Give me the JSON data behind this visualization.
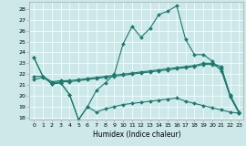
{
  "xlabel": "Humidex (Indice chaleur)",
  "bg_color": "#cce8e8",
  "grid_color": "#ffffff",
  "line_color": "#1a7a6e",
  "xlim": [
    -0.5,
    23.5
  ],
  "ylim": [
    17.8,
    28.7
  ],
  "xticks": [
    0,
    1,
    2,
    3,
    4,
    5,
    6,
    7,
    8,
    9,
    10,
    11,
    12,
    13,
    14,
    15,
    16,
    17,
    18,
    19,
    20,
    21,
    22,
    23
  ],
  "yticks": [
    18,
    19,
    20,
    21,
    22,
    23,
    24,
    25,
    26,
    27,
    28
  ],
  "lines": [
    {
      "x": [
        0,
        1,
        2,
        3,
        4,
        5,
        6,
        7,
        8,
        9,
        10,
        11,
        12,
        13,
        14,
        15,
        16,
        17,
        18,
        19,
        20,
        21,
        22,
        23
      ],
      "y": [
        23.5,
        21.8,
        21.1,
        21.2,
        20.1,
        17.8,
        19.0,
        20.5,
        21.2,
        22.0,
        24.8,
        26.4,
        25.4,
        26.2,
        27.5,
        27.8,
        28.3,
        25.2,
        23.8,
        23.8,
        23.2,
        22.3,
        20.0,
        18.5
      ]
    },
    {
      "x": [
        0,
        1,
        2,
        3,
        4,
        5,
        6,
        7,
        8,
        9,
        10,
        11,
        12,
        13,
        14,
        15,
        16,
        17,
        18,
        19,
        20,
        21,
        22,
        23
      ],
      "y": [
        21.8,
        21.8,
        21.3,
        21.4,
        21.4,
        21.5,
        21.6,
        21.7,
        21.8,
        21.9,
        22.0,
        22.1,
        22.2,
        22.3,
        22.4,
        22.5,
        22.6,
        22.7,
        22.8,
        23.0,
        23.0,
        22.7,
        20.1,
        18.5
      ]
    },
    {
      "x": [
        0,
        1,
        2,
        3,
        4,
        5,
        6,
        7,
        8,
        9,
        10,
        11,
        12,
        13,
        14,
        15,
        16,
        17,
        18,
        19,
        20,
        21,
        22,
        23
      ],
      "y": [
        21.5,
        21.7,
        21.2,
        21.3,
        21.3,
        21.4,
        21.5,
        21.6,
        21.7,
        21.8,
        21.9,
        22.0,
        22.1,
        22.2,
        22.3,
        22.4,
        22.5,
        22.6,
        22.7,
        22.9,
        22.9,
        22.5,
        19.9,
        18.4
      ]
    },
    {
      "x": [
        0,
        1,
        2,
        3,
        4,
        5,
        6,
        7,
        8,
        9,
        10,
        11,
        12,
        13,
        14,
        15,
        16,
        17,
        18,
        19,
        20,
        21,
        22,
        23
      ],
      "y": [
        23.5,
        21.8,
        21.1,
        21.2,
        20.1,
        17.8,
        19.0,
        18.5,
        18.8,
        19.0,
        19.2,
        19.3,
        19.4,
        19.5,
        19.6,
        19.7,
        19.8,
        19.5,
        19.3,
        19.1,
        18.9,
        18.7,
        18.5,
        18.4
      ]
    }
  ],
  "markersize": 2.0,
  "linewidth": 0.8
}
